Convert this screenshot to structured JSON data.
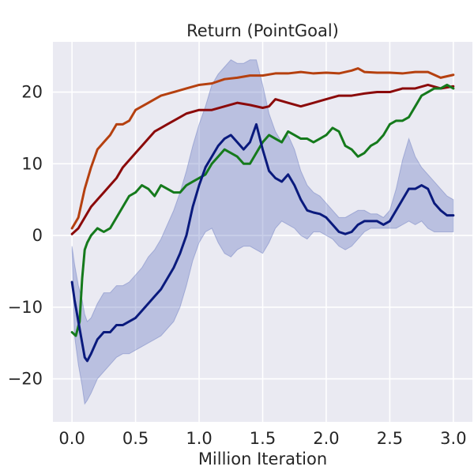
{
  "chart_data": {
    "type": "line",
    "title": "Return (PointGoal)",
    "xlabel": "Million Iteration",
    "ylabel": "",
    "xlim": [
      -0.15,
      3.15
    ],
    "ylim": [
      -26,
      27
    ],
    "xticks": [
      0.0,
      0.5,
      1.0,
      1.5,
      2.0,
      2.5,
      3.0
    ],
    "xtick_labels": [
      "0.0",
      "0.5",
      "1.0",
      "1.5",
      "2.0",
      "2.5",
      "3.0"
    ],
    "yticks": [
      -20,
      -10,
      0,
      10,
      20
    ],
    "ytick_labels": [
      "−20",
      "−10",
      "0",
      "10",
      "20"
    ],
    "grid": true,
    "background": "#eaeaf2",
    "series": [
      {
        "color": "#b5400f",
        "x": [
          0.0,
          0.05,
          0.1,
          0.15,
          0.2,
          0.25,
          0.3,
          0.35,
          0.4,
          0.45,
          0.5,
          0.6,
          0.7,
          0.8,
          0.9,
          1.0,
          1.1,
          1.2,
          1.3,
          1.4,
          1.5,
          1.6,
          1.7,
          1.8,
          1.9,
          2.0,
          2.1,
          2.2,
          2.25,
          2.3,
          2.4,
          2.5,
          2.6,
          2.7,
          2.8,
          2.9,
          3.0
        ],
        "y": [
          1.0,
          2.5,
          6.5,
          9.5,
          12.0,
          13.0,
          14.0,
          15.5,
          15.5,
          16.0,
          17.5,
          18.5,
          19.5,
          20.0,
          20.5,
          21.0,
          21.2,
          21.8,
          22.0,
          22.3,
          22.3,
          22.6,
          22.6,
          22.8,
          22.6,
          22.7,
          22.6,
          23.0,
          23.3,
          22.8,
          22.7,
          22.7,
          22.6,
          22.8,
          22.8,
          22.0,
          22.4
        ]
      },
      {
        "color": "#8b0a0a",
        "x": [
          0.0,
          0.05,
          0.1,
          0.15,
          0.2,
          0.25,
          0.3,
          0.35,
          0.4,
          0.45,
          0.5,
          0.55,
          0.6,
          0.65,
          0.7,
          0.75,
          0.8,
          0.85,
          0.9,
          1.0,
          1.1,
          1.2,
          1.3,
          1.4,
          1.5,
          1.55,
          1.6,
          1.7,
          1.8,
          1.9,
          2.0,
          2.1,
          2.2,
          2.3,
          2.4,
          2.5,
          2.6,
          2.7,
          2.8,
          2.9,
          3.0
        ],
        "y": [
          0.2,
          1.0,
          2.5,
          4.0,
          5.0,
          6.0,
          7.0,
          8.0,
          9.5,
          10.5,
          11.5,
          12.5,
          13.5,
          14.5,
          15.0,
          15.5,
          16.0,
          16.5,
          17.0,
          17.5,
          17.5,
          18.0,
          18.5,
          18.2,
          17.8,
          18.0,
          19.0,
          18.5,
          18.0,
          18.5,
          19.0,
          19.5,
          19.5,
          19.8,
          20.0,
          20.0,
          20.5,
          20.5,
          21.0,
          20.5,
          20.8
        ]
      },
      {
        "color": "#157a1c",
        "x": [
          0.0,
          0.03,
          0.06,
          0.08,
          0.1,
          0.12,
          0.15,
          0.2,
          0.25,
          0.3,
          0.35,
          0.4,
          0.45,
          0.5,
          0.55,
          0.6,
          0.65,
          0.7,
          0.75,
          0.8,
          0.85,
          0.9,
          0.95,
          1.0,
          1.05,
          1.1,
          1.15,
          1.2,
          1.25,
          1.3,
          1.35,
          1.4,
          1.45,
          1.5,
          1.55,
          1.6,
          1.65,
          1.7,
          1.75,
          1.8,
          1.85,
          1.9,
          1.95,
          2.0,
          2.05,
          2.1,
          2.15,
          2.2,
          2.25,
          2.3,
          2.35,
          2.4,
          2.45,
          2.5,
          2.55,
          2.6,
          2.65,
          2.7,
          2.75,
          2.8,
          2.85,
          2.9,
          2.95,
          3.0
        ],
        "y": [
          -13.5,
          -14.0,
          -12.0,
          -6.0,
          -2.0,
          -1.0,
          0.0,
          1.0,
          0.5,
          1.0,
          2.5,
          4.0,
          5.5,
          6.0,
          7.0,
          6.5,
          5.5,
          7.0,
          6.5,
          6.0,
          6.0,
          7.0,
          7.5,
          8.0,
          8.5,
          10.0,
          11.0,
          12.0,
          11.5,
          11.0,
          10.0,
          10.0,
          11.5,
          13.0,
          14.0,
          13.5,
          13.0,
          14.5,
          14.0,
          13.5,
          13.5,
          13.0,
          13.5,
          14.0,
          15.0,
          14.5,
          12.5,
          12.0,
          11.0,
          11.5,
          12.5,
          13.0,
          14.0,
          15.5,
          16.0,
          16.0,
          16.5,
          18.0,
          19.5,
          20.0,
          20.5,
          20.5,
          21.0,
          20.5
        ]
      },
      {
        "color": "#0a1a7d",
        "band_color": "#4c60b5",
        "x": [
          0.0,
          0.02,
          0.05,
          0.08,
          0.1,
          0.12,
          0.15,
          0.2,
          0.25,
          0.3,
          0.35,
          0.4,
          0.45,
          0.5,
          0.55,
          0.6,
          0.65,
          0.7,
          0.75,
          0.8,
          0.85,
          0.9,
          0.95,
          1.0,
          1.05,
          1.1,
          1.15,
          1.2,
          1.25,
          1.3,
          1.35,
          1.4,
          1.45,
          1.5,
          1.55,
          1.6,
          1.65,
          1.7,
          1.75,
          1.8,
          1.85,
          1.9,
          1.95,
          2.0,
          2.05,
          2.1,
          2.15,
          2.2,
          2.25,
          2.3,
          2.35,
          2.4,
          2.45,
          2.5,
          2.55,
          2.6,
          2.65,
          2.7,
          2.75,
          2.8,
          2.85,
          2.9,
          2.95,
          3.0
        ],
        "y": [
          -6.5,
          -9.0,
          -12.0,
          -15.0,
          -17.0,
          -17.5,
          -16.5,
          -14.5,
          -13.5,
          -13.5,
          -12.5,
          -12.5,
          -12.0,
          -11.5,
          -10.5,
          -9.5,
          -8.5,
          -7.5,
          -6.0,
          -4.5,
          -2.5,
          0.0,
          4.0,
          7.0,
          9.5,
          11.0,
          12.5,
          13.5,
          14.0,
          13.0,
          12.0,
          13.0,
          15.5,
          12.0,
          9.0,
          8.0,
          7.5,
          8.5,
          7.0,
          5.0,
          3.5,
          3.2,
          3.0,
          2.5,
          1.5,
          0.5,
          0.2,
          0.5,
          1.5,
          2.0,
          2.0,
          2.0,
          1.5,
          2.0,
          3.5,
          5.0,
          6.5,
          6.5,
          7.0,
          6.5,
          4.5,
          3.5,
          2.8,
          2.8
        ],
        "lower": [
          -2.0,
          -14.0,
          -18.0,
          -21.0,
          -23.5,
          -23.0,
          -22.0,
          -20.0,
          -19.0,
          -18.0,
          -17.0,
          -16.5,
          -16.5,
          -16.0,
          -15.5,
          -15.0,
          -14.5,
          -14.0,
          -13.0,
          -12.0,
          -10.0,
          -7.0,
          -3.5,
          -1.0,
          0.5,
          1.0,
          -1.0,
          -2.5,
          -3.0,
          -2.0,
          -1.5,
          -1.5,
          -2.0,
          -2.5,
          -1.0,
          1.0,
          2.0,
          1.5,
          1.0,
          0.0,
          -0.5,
          0.5,
          0.5,
          0.0,
          -0.5,
          -1.5,
          -2.0,
          -1.5,
          -0.5,
          0.5,
          1.0,
          1.0,
          1.0,
          1.0,
          1.0,
          1.5,
          2.0,
          1.5,
          2.0,
          1.0,
          0.5,
          0.5,
          0.5,
          0.5
        ],
        "upper": [
          -1.5,
          -4.0,
          -7.0,
          -9.0,
          -11.0,
          -12.0,
          -11.5,
          -9.5,
          -8.0,
          -8.0,
          -7.0,
          -7.0,
          -6.5,
          -5.5,
          -4.5,
          -3.0,
          -2.0,
          -0.5,
          1.5,
          3.5,
          6.0,
          9.0,
          12.5,
          15.5,
          18.0,
          21.0,
          22.5,
          23.5,
          24.5,
          24.0,
          24.0,
          24.5,
          24.5,
          21.0,
          17.0,
          14.5,
          13.0,
          14.0,
          12.0,
          9.0,
          7.0,
          6.0,
          5.5,
          4.5,
          3.5,
          2.5,
          2.5,
          3.0,
          3.5,
          3.5,
          3.0,
          3.0,
          2.5,
          3.5,
          6.5,
          10.5,
          13.5,
          11.0,
          9.5,
          8.5,
          7.5,
          6.5,
          5.5,
          5.0
        ]
      }
    ]
  }
}
